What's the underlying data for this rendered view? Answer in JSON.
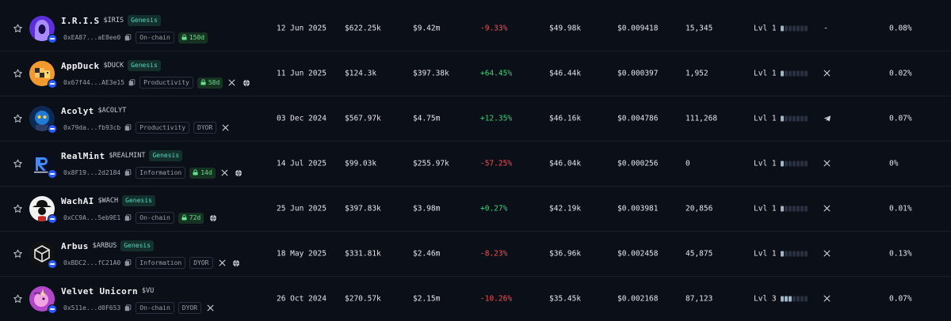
{
  "rows": [
    {
      "name": "I.R.I.S",
      "ticker": "$IRIS",
      "genesis": "Genesis",
      "address": "0xEA87...aE8ee0",
      "category": "On-chain",
      "lock": "150d",
      "dyor": "",
      "socials": [],
      "created": "12 Jun 2025",
      "mcap": "$622.25k",
      "volume": "$9.42m",
      "change": "-9.33%",
      "change_dir": "neg",
      "liquidity": "$49.98k",
      "price": "$0.009418",
      "holders": "15,345",
      "level": "Lvl 1",
      "level_num": 1,
      "link": "-",
      "link_icon": "",
      "pct": "0.08%",
      "avatar_color": "#7b4dff",
      "avatar_icon": "hood-icon"
    },
    {
      "name": "AppDuck",
      "ticker": "$DUCK",
      "genesis": "Genesis",
      "address": "0x67f44...AE3e15",
      "category": "Productivity",
      "lock": "58d",
      "dyor": "",
      "socials": [
        "x-icon",
        "globe-icon"
      ],
      "created": "11 Jun 2025",
      "mcap": "$124.3k",
      "volume": "$397.38k",
      "change": "+64.45%",
      "change_dir": "pos",
      "liquidity": "$46.44k",
      "price": "$0.000397",
      "holders": "1,952",
      "level": "Lvl 1",
      "level_num": 1,
      "link": "",
      "link_icon": "x-icon",
      "pct": "0.02%",
      "avatar_color": "#f2a43a",
      "avatar_icon": "duck-icon"
    },
    {
      "name": "Acolyt",
      "ticker": "$ACOLYT",
      "genesis": "",
      "address": "0x79da...fb93cb",
      "category": "Productivity",
      "lock": "",
      "dyor": "DYOR",
      "socials": [
        "x-icon"
      ],
      "created": "03 Dec 2024",
      "mcap": "$567.97k",
      "volume": "$4.75m",
      "change": "+12.35%",
      "change_dir": "pos",
      "liquidity": "$46.16k",
      "price": "$0.004786",
      "holders": "111,268",
      "level": "Lvl 1",
      "level_num": 1,
      "link": "",
      "link_icon": "telegram-icon",
      "pct": "0.07%",
      "avatar_color": "#1f7bd6",
      "avatar_icon": "robot-icon"
    },
    {
      "name": "RealMint",
      "ticker": "$REALMINT",
      "genesis": "Genesis",
      "address": "0x8F19...2d2184",
      "category": "Information",
      "lock": "14d",
      "dyor": "",
      "socials": [
        "x-icon",
        "globe-icon"
      ],
      "created": "14 Jul 2025",
      "mcap": "$99.03k",
      "volume": "$255.97k",
      "change": "-57.25%",
      "change_dir": "neg",
      "liquidity": "$46.04k",
      "price": "$0.000256",
      "holders": "0",
      "level": "Lvl 1",
      "level_num": 1,
      "link": "",
      "link_icon": "x-icon",
      "pct": "0%",
      "avatar_color": "#0e1a33",
      "avatar_icon": "r-logo-icon"
    },
    {
      "name": "WachAI",
      "ticker": "$WACH",
      "genesis": "Genesis",
      "address": "0xCC9A...5eb9E1",
      "category": "On-chain",
      "lock": "72d",
      "dyor": "",
      "socials": [
        "globe-icon"
      ],
      "created": "25 Jun 2025",
      "mcap": "$397.83k",
      "volume": "$3.98m",
      "change": "+0.27%",
      "change_dir": "pos",
      "liquidity": "$42.19k",
      "price": "$0.003981",
      "holders": "20,856",
      "level": "Lvl 1",
      "level_num": 1,
      "link": "",
      "link_icon": "x-icon",
      "pct": "0.01%",
      "avatar_color": "#f4f4f4",
      "avatar_icon": "detective-icon"
    },
    {
      "name": "Arbus",
      "ticker": "$ARBUS",
      "genesis": "Genesis",
      "address": "0xBDC2...fC21A0",
      "category": "Information",
      "lock": "",
      "dyor": "DYOR",
      "socials": [
        "x-icon",
        "globe-icon"
      ],
      "created": "18 May 2025",
      "mcap": "$331.81k",
      "volume": "$2.46m",
      "change": "-8.23%",
      "change_dir": "neg",
      "liquidity": "$36.96k",
      "price": "$0.002458",
      "holders": "45,875",
      "level": "Lvl 1",
      "level_num": 1,
      "link": "",
      "link_icon": "x-icon",
      "pct": "0.13%",
      "avatar_color": "#111111",
      "avatar_icon": "cube-icon"
    },
    {
      "name": "Velvet Unicorn",
      "ticker": "$VU",
      "genesis": "",
      "address": "0x511e...d0F653",
      "category": "On-chain",
      "lock": "",
      "dyor": "DYOR",
      "socials": [
        "x-icon"
      ],
      "created": "26 Oct 2024",
      "mcap": "$270.57k",
      "volume": "$2.15m",
      "change": "-10.26%",
      "change_dir": "neg",
      "liquidity": "$35.45k",
      "price": "$0.002168",
      "holders": "87,123",
      "level": "Lvl 3",
      "level_num": 3,
      "link": "",
      "link_icon": "x-icon",
      "pct": "0.07%",
      "avatar_color": "#c84fd8",
      "avatar_icon": "unicorn-icon"
    }
  ]
}
